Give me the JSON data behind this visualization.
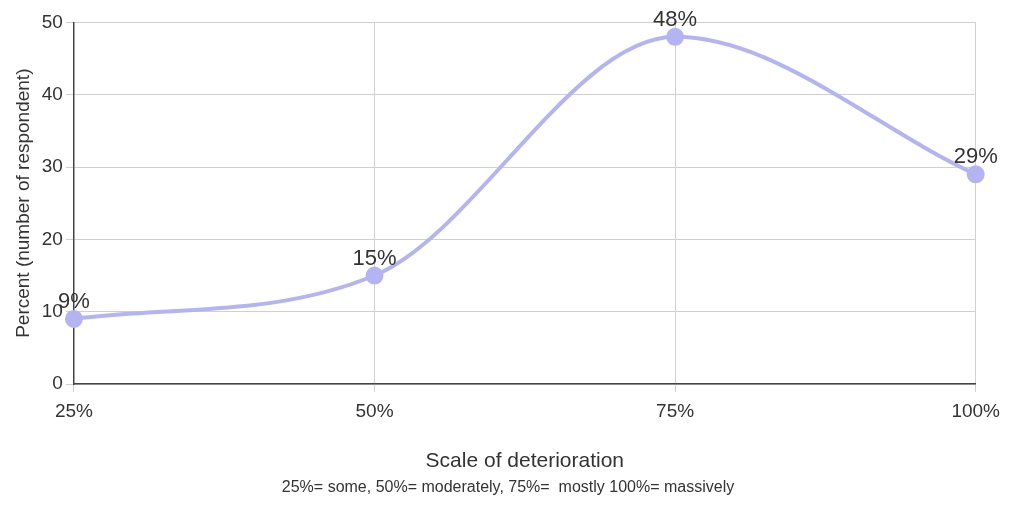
{
  "chart_data": {
    "type": "line",
    "xlabel": "Scale of deterioration",
    "ylabel": "Percent (number of respondent)",
    "categories": [
      "25%",
      "50%",
      "75%",
      "100%"
    ],
    "series": [
      {
        "color": "#b4b4f2",
        "values": [
          9,
          15,
          48,
          29
        ],
        "value_labels": [
          "9%",
          "15%",
          "48%",
          "29%"
        ]
      }
    ],
    "ylim": [
      0,
      50
    ],
    "yticks": [
      0,
      10,
      20,
      30,
      40,
      50
    ],
    "grid": true,
    "marker": "circle",
    "annotations": [
      "25%= some, 50%= moderately, 75%=  mostly 100%= massively"
    ]
  }
}
